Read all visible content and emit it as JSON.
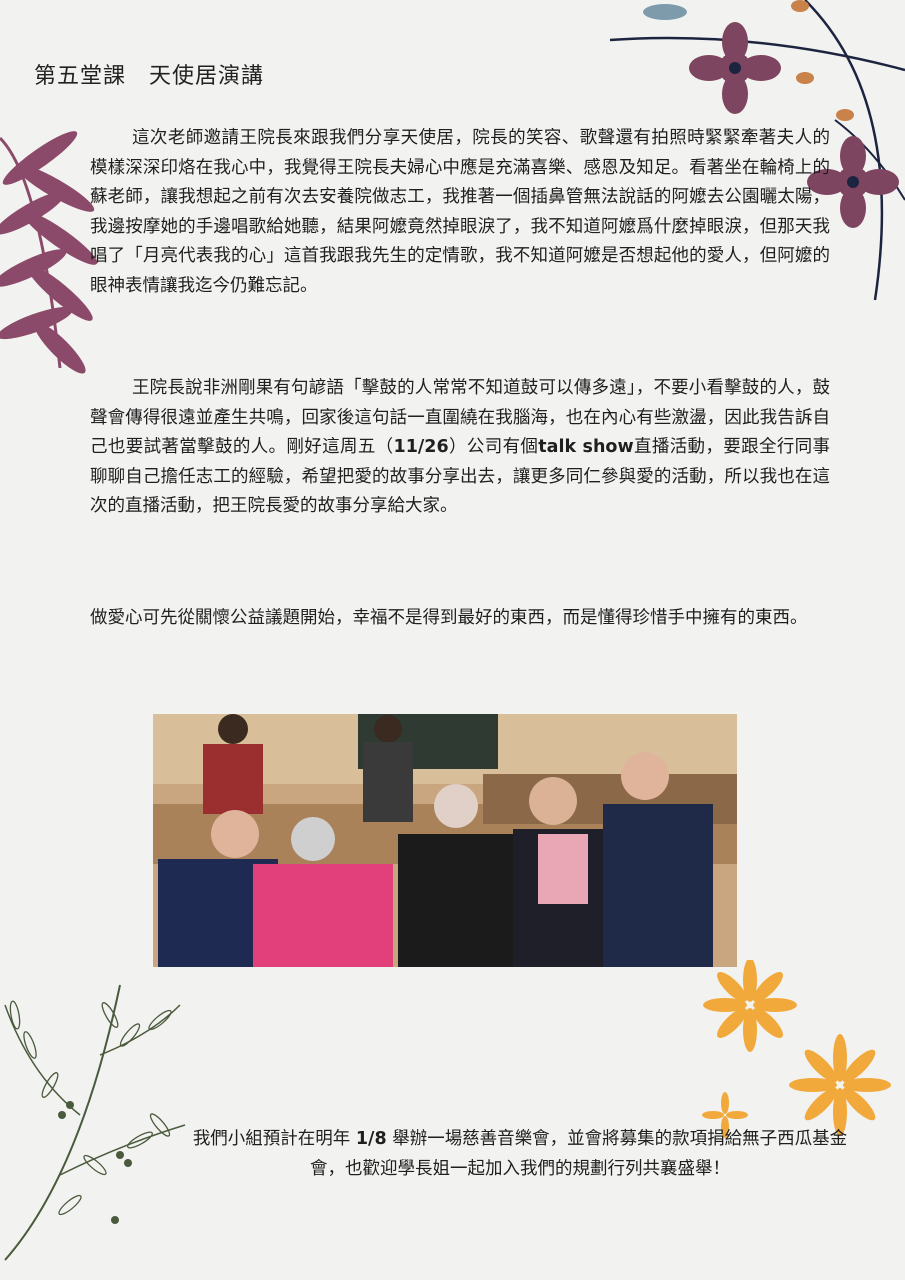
{
  "title": "第五堂課　天使居演講",
  "paragraph1": "這次老師邀請王院長來跟我們分享天使居，院長的笑容、歌聲還有拍照時緊緊牽著夫人的模樣深深印烙在我心中，我覺得王院長夫婦心中應是充滿喜樂、感恩及知足。看著坐在輪椅上的蘇老師，讓我想起之前有次去安養院做志工，我推著一個插鼻管無法說話的阿嬤去公園曬太陽，我邊按摩她的手邊唱歌給她聽，結果阿嬤竟然掉眼淚了，我不知道阿嬤爲什麼掉眼淚，但那天我唱了「月亮代表我的心」這首我跟我先生的定情歌，我不知道阿嬤是否想起他的愛人，但阿嬤的眼神表情讓我迄今仍難忘記。",
  "paragraph2": {
    "part1": "王院長說非洲剛果有句諺語「擊鼓的人常常不知道鼓可以傳多遠」，不要小看擊鼓的人，鼓聲會傳得很遠並產生共鳴，回家後這句話一直圍繞在我腦海，也在內心有些激盪，因此我告訴自己也要試著當擊鼓的人。剛好這周五（",
    "date": "11/26",
    "part2": "）公司有個",
    "show": "talk show",
    "part3": "直播活動，要跟全行同事聊聊自己擔任志工的經驗，希望把愛的故事分享出去，讓更多同仁參與愛的活動，所以我也在這次的直播活動，把王院長愛的故事分享給大家。"
  },
  "paragraph3": "做愛心可先從關懷公益議題開始，幸福不是得到最好的東西，而是懂得珍惜手中擁有的東西。",
  "closing": {
    "part1": "我們小組預計在明年 ",
    "date": "1/8",
    "part2": " 舉辦一場慈善音樂會，並會將募集的款項捐給無子西瓜基金會，也歡迎學長姐一起加入我們的規劃行列共襄盛舉！"
  },
  "colors": {
    "background": "#f2f2f0",
    "plum_leaf": "#8c4a6a",
    "flower": "#7d4560",
    "orange_flower": "#f2a93b",
    "navy_stem": "#1d2440",
    "olive": "#4a5a3c"
  }
}
